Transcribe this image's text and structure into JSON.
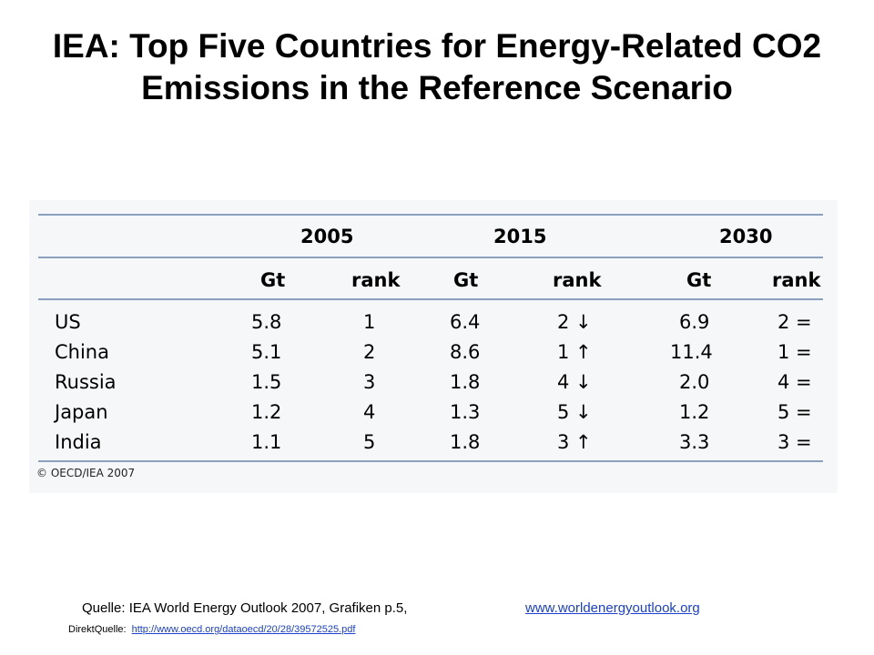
{
  "slide": {
    "title": "IEA: Top Five Countries for Energy-Related CO2 Emissions in the Reference Scenario"
  },
  "table": {
    "years": [
      "2005",
      "2015",
      "2030"
    ],
    "subheaders": [
      "Gt",
      "rank",
      "Gt",
      "rank",
      "Gt",
      "rank"
    ],
    "rows": [
      {
        "country": "US",
        "gt2005": "5.8",
        "rank2005": "1",
        "gt2015": "6.4",
        "rank2015": "2 ↓",
        "gt2030": "6.9",
        "rank2030": "2 ="
      },
      {
        "country": "China",
        "gt2005": "5.1",
        "rank2005": "2",
        "gt2015": "8.6",
        "rank2015": "1 ↑",
        "gt2030": "11.4",
        "rank2030": "1 ="
      },
      {
        "country": "Russia",
        "gt2005": "1.5",
        "rank2005": "3",
        "gt2015": "1.8",
        "rank2015": "4 ↓",
        "gt2030": "2.0",
        "rank2030": "4 ="
      },
      {
        "country": "Japan",
        "gt2005": "1.2",
        "rank2005": "4",
        "gt2015": "1.3",
        "rank2015": "5 ↓",
        "gt2030": "1.2",
        "rank2030": "5 ="
      },
      {
        "country": "India",
        "gt2005": "1.1",
        "rank2005": "5",
        "gt2015": "1.8",
        "rank2015": "3 ↑",
        "gt2030": "3.3",
        "rank2030": "3 ="
      }
    ],
    "copyright": "© OECD/IEA 2007"
  },
  "footer": {
    "source_label": "Quelle: IEA World Energy Outlook 2007, Grafiken p.5,",
    "source_link": "www.worldenergyoutlook.org",
    "direct_label": "DirektQuelle:",
    "direct_link": "http://www.oecd.org/dataoecd/20/28/39572525.pdf"
  }
}
